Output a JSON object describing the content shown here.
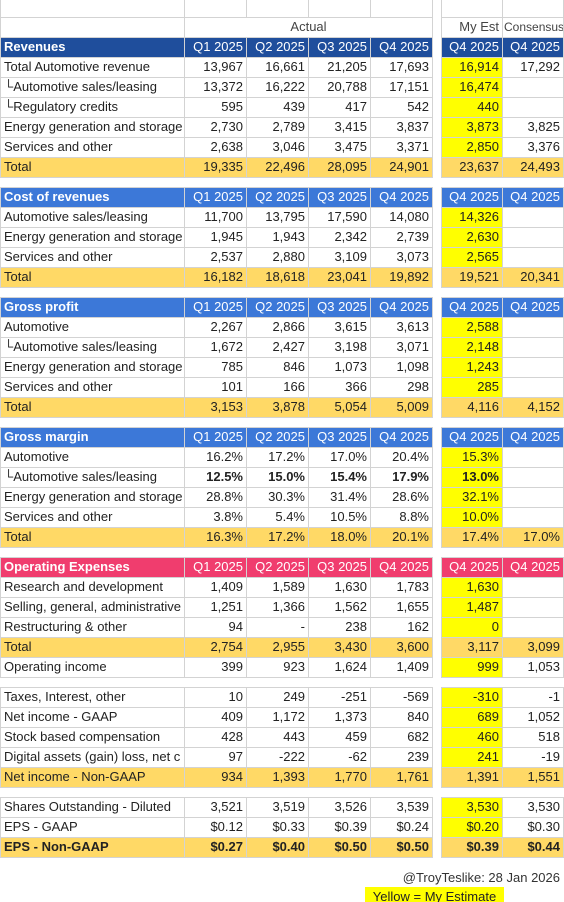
{
  "header": {
    "actual": "Actual",
    "my_est": "My Est",
    "consensus": "Consensus"
  },
  "sections": [
    {
      "title": "Revenues",
      "color": "#1f4e9c",
      "columns": [
        "Q1 2025",
        "Q2 2025",
        "Q3 2025",
        "Q4 2025",
        "Q4 2025",
        "Q4 2025"
      ],
      "rows": [
        {
          "label": "Total Automotive revenue",
          "values": [
            "13,967",
            "16,661",
            "21,205",
            "17,693",
            "16,914",
            "17,292"
          ]
        },
        {
          "label": "└Automotive sales/leasing",
          "values": [
            "13,372",
            "16,222",
            "20,788",
            "17,151",
            "16,474",
            null
          ]
        },
        {
          "label": "└Regulatory credits",
          "values": [
            "595",
            "439",
            "417",
            "542",
            "440",
            null
          ]
        },
        {
          "label": "Energy generation and storage",
          "values": [
            "2,730",
            "2,789",
            "3,415",
            "3,837",
            "3,873",
            "3,825"
          ]
        },
        {
          "label": "Services and other",
          "values": [
            "2,638",
            "3,046",
            "3,475",
            "3,371",
            "2,850",
            "3,376"
          ]
        },
        {
          "label": "Total",
          "values": [
            "19,335",
            "22,496",
            "28,095",
            "24,901",
            "23,637",
            "24,493"
          ],
          "total": true
        }
      ]
    },
    {
      "title": "Cost of revenues",
      "color": "#3c78d8",
      "columns": [
        "Q1 2025",
        "Q2 2025",
        "Q3 2025",
        "Q4 2025",
        "Q4 2025",
        "Q4 2025"
      ],
      "rows": [
        {
          "label": "Automotive sales/leasing",
          "values": [
            "11,700",
            "13,795",
            "17,590",
            "14,080",
            "14,326",
            null
          ]
        },
        {
          "label": "Energy generation and storage",
          "values": [
            "1,945",
            "1,943",
            "2,342",
            "2,739",
            "2,630",
            null
          ]
        },
        {
          "label": "Services and other",
          "values": [
            "2,537",
            "2,880",
            "3,109",
            "3,073",
            "2,565",
            null
          ]
        },
        {
          "label": "Total",
          "values": [
            "16,182",
            "18,618",
            "23,041",
            "19,892",
            "19,521",
            "20,341"
          ],
          "total": true
        }
      ]
    },
    {
      "title": "Gross profit",
      "color": "#3c78d8",
      "columns": [
        "Q1 2025",
        "Q2 2025",
        "Q3 2025",
        "Q4 2025",
        "Q4 2025",
        "Q4 2025"
      ],
      "rows": [
        {
          "label": "Automotive",
          "values": [
            "2,267",
            "2,866",
            "3,615",
            "3,613",
            "2,588",
            null
          ]
        },
        {
          "label": "└Automotive sales/leasing",
          "values": [
            "1,672",
            "2,427",
            "3,198",
            "3,071",
            "2,148",
            null
          ]
        },
        {
          "label": "Energy generation and storage",
          "values": [
            "785",
            "846",
            "1,073",
            "1,098",
            "1,243",
            null
          ]
        },
        {
          "label": "Services and other",
          "values": [
            "101",
            "166",
            "366",
            "298",
            "285",
            null
          ]
        },
        {
          "label": "Total",
          "values": [
            "3,153",
            "3,878",
            "5,054",
            "5,009",
            "4,116",
            "4,152"
          ],
          "total": true
        }
      ]
    },
    {
      "title": "Gross margin",
      "color": "#3c78d8",
      "columns": [
        "Q1 2025",
        "Q2 2025",
        "Q3 2025",
        "Q4 2025",
        "Q4 2025",
        "Q4 2025"
      ],
      "rows": [
        {
          "label": "Automotive",
          "values": [
            "16.2%",
            "17.2%",
            "17.0%",
            "20.4%",
            "15.3%",
            null
          ]
        },
        {
          "label": "└Automotive sales/leasing",
          "values": [
            "12.5%",
            "15.0%",
            "15.4%",
            "17.9%",
            "13.0%",
            null
          ],
          "bold_values": true
        },
        {
          "label": "Energy generation and storage",
          "values": [
            "28.8%",
            "30.3%",
            "31.4%",
            "28.6%",
            "32.1%",
            null
          ]
        },
        {
          "label": "Services and other",
          "values": [
            "3.8%",
            "5.4%",
            "10.5%",
            "8.8%",
            "10.0%",
            null
          ]
        },
        {
          "label": "Total",
          "values": [
            "16.3%",
            "17.2%",
            "18.0%",
            "20.1%",
            "17.4%",
            "17.0%"
          ],
          "total": true
        }
      ]
    },
    {
      "title": "Operating Expenses",
      "color": "#f03d6e",
      "columns": [
        "Q1 2025",
        "Q2 2025",
        "Q3 2025",
        "Q4 2025",
        "Q4 2025",
        "Q4 2025"
      ],
      "rows": [
        {
          "label": "Research and development",
          "values": [
            "1,409",
            "1,589",
            "1,630",
            "1,783",
            "1,630",
            null
          ]
        },
        {
          "label": "Selling, general, administrative",
          "values": [
            "1,251",
            "1,366",
            "1,562",
            "1,655",
            "1,487",
            null
          ]
        },
        {
          "label": "Restructuring & other",
          "values": [
            "94",
            "-",
            "238",
            "162",
            "0",
            null
          ]
        },
        {
          "label": "Total",
          "values": [
            "2,754",
            "2,955",
            "3,430",
            "3,600",
            "3,117",
            "3,099"
          ],
          "total": true
        },
        {
          "label": "Operating income",
          "values": [
            "399",
            "923",
            "1,624",
            "1,409",
            "999",
            "1,053"
          ]
        }
      ]
    },
    {
      "rows": [
        {
          "label": "Taxes, Interest, other",
          "values": [
            "10",
            "249",
            "-251",
            "-569",
            "-310",
            "-1"
          ]
        },
        {
          "label": "Net income - GAAP",
          "values": [
            "409",
            "1,172",
            "1,373",
            "840",
            "689",
            "1,052"
          ]
        },
        {
          "label": "Stock based compensation",
          "values": [
            "428",
            "443",
            "459",
            "682",
            "460",
            "518"
          ]
        },
        {
          "label": "Digital assets (gain) loss, net c",
          "values": [
            "97",
            "-222",
            "-62",
            "239",
            "241",
            "-19"
          ]
        },
        {
          "label": "Net income - Non-GAAP",
          "values": [
            "934",
            "1,393",
            "1,770",
            "1,761",
            "1,391",
            "1,551"
          ],
          "total": true
        }
      ]
    },
    {
      "rows": [
        {
          "label": "Shares Outstanding - Diluted",
          "values": [
            "3,521",
            "3,519",
            "3,526",
            "3,539",
            "3,530",
            "3,530"
          ]
        },
        {
          "label": "EPS - GAAP",
          "values": [
            "$0.12",
            "$0.33",
            "$0.39",
            "$0.24",
            "$0.20",
            "$0.30"
          ]
        },
        {
          "label": "EPS - Non-GAAP",
          "values": [
            "$0.27",
            "$0.40",
            "$0.50",
            "$0.50",
            "$0.39",
            "$0.44"
          ],
          "total": true,
          "bold_label": true,
          "bold_values": true
        }
      ]
    }
  ],
  "footer": {
    "credit": "@TroyTeslike: 28 Jan 2026",
    "legend": "Yellow = My Estimate"
  }
}
